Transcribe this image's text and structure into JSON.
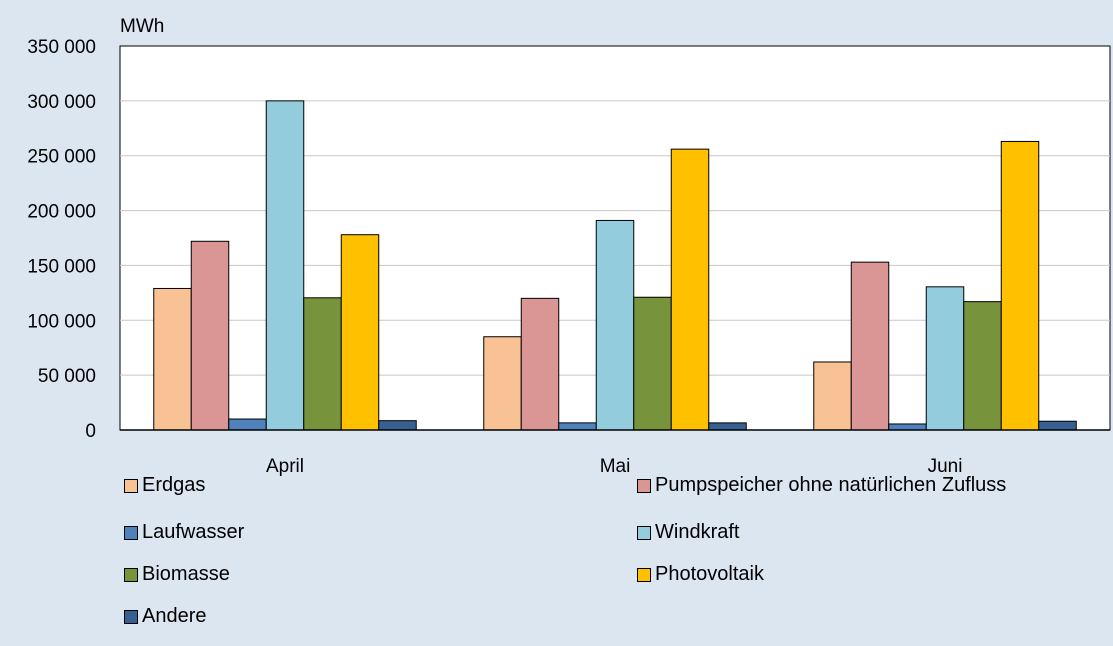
{
  "chart_data": {
    "type": "bar",
    "unit_label": "MWh",
    "categories": [
      "April",
      "Mai",
      "Juni"
    ],
    "ylim": [
      0,
      350000
    ],
    "yticks": [
      0,
      50000,
      100000,
      150000,
      200000,
      250000,
      300000,
      350000
    ],
    "ytick_labels": [
      "0",
      "50 000",
      "100 000",
      "150 000",
      "200 000",
      "250 000",
      "300 000",
      "350 000"
    ],
    "grid": true,
    "legend_position": "bottom",
    "series": [
      {
        "name": "Erdgas",
        "color": "#f9c294",
        "values": [
          129000,
          85000,
          62000
        ]
      },
      {
        "name": "Pumpspeicher ohne natürlichen Zufluss",
        "color": "#d99694",
        "values": [
          172000,
          120000,
          153000
        ]
      },
      {
        "name": "Laufwasser",
        "color": "#4f81bd",
        "values": [
          10000,
          6500,
          5500
        ]
      },
      {
        "name": "Windkraft",
        "color": "#93cddd",
        "values": [
          300000,
          191000,
          130500
        ]
      },
      {
        "name": "Biomasse",
        "color": "#77933c",
        "values": [
          120500,
          121000,
          117000
        ]
      },
      {
        "name": "Photovoltaik",
        "color": "#ffc000",
        "values": [
          178000,
          256000,
          263000
        ]
      },
      {
        "name": "Andere",
        "color": "#376092",
        "values": [
          8500,
          6500,
          8000
        ]
      }
    ]
  }
}
